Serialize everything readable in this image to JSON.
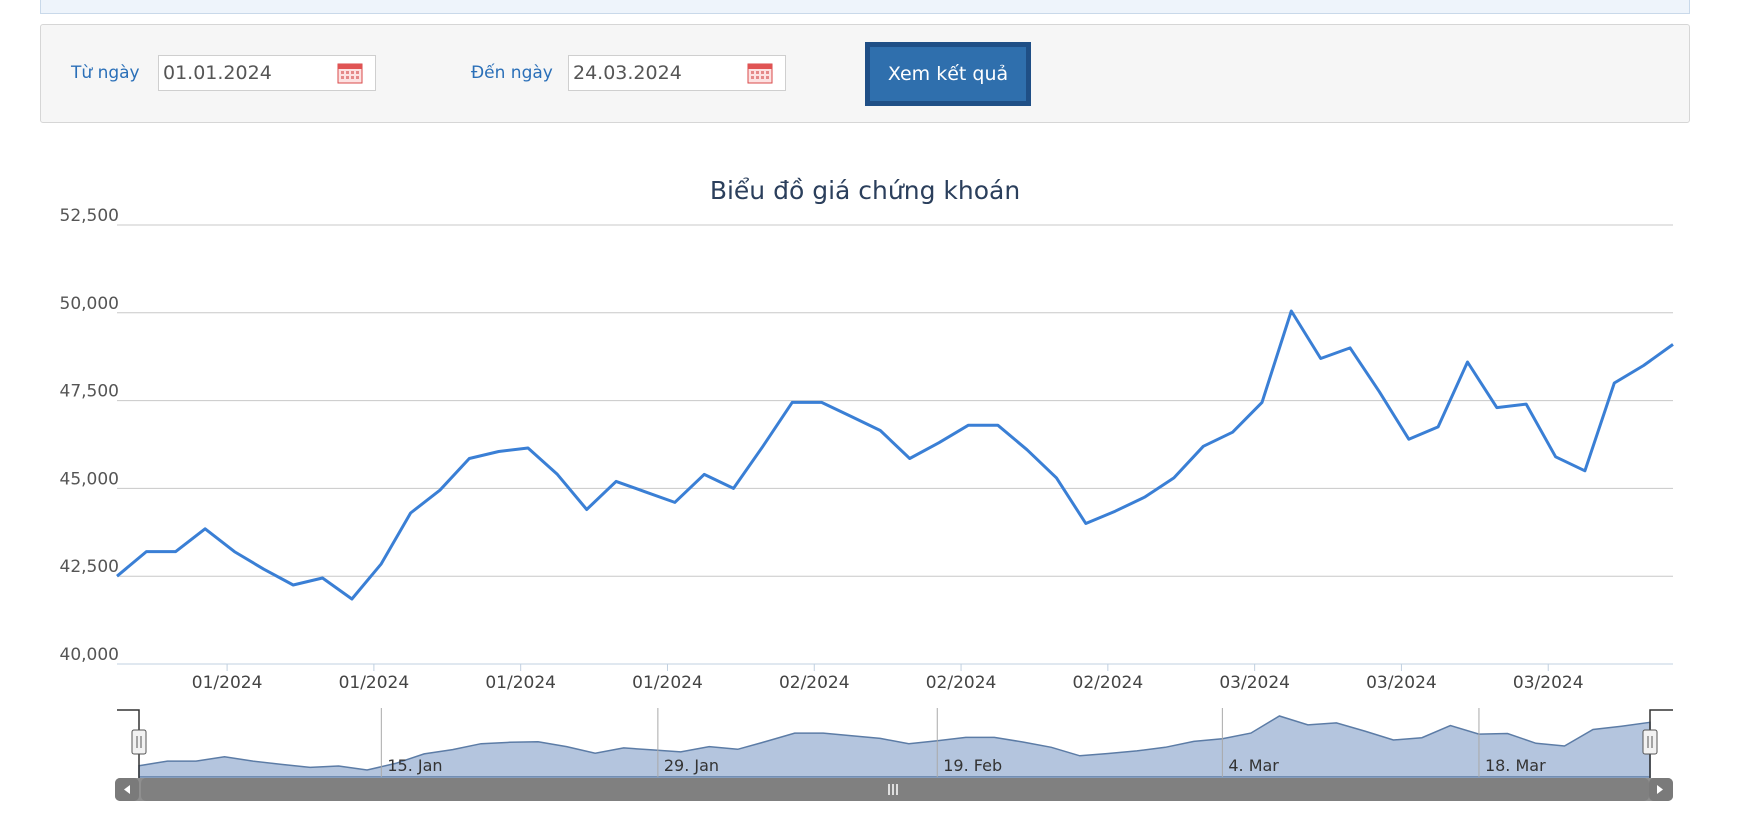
{
  "filter": {
    "from_label": "Từ ngày",
    "from_value": "01.01.2024",
    "to_label": "Đến ngày",
    "to_value": "24.03.2024",
    "submit_label": "Xem kết quả"
  },
  "colors": {
    "accent": "#2f6fad",
    "line": "#3a7fd5",
    "navigator_fill": "#b4c5de",
    "navigator_line": "#5c7ca6",
    "scrollbar": "#808080"
  },
  "chart_data": {
    "type": "line",
    "title": "Biểu đồ giá chứng khoán",
    "xlabel": "",
    "ylabel": "",
    "ylim": [
      40000,
      52500
    ],
    "yticks": [
      40000,
      42500,
      45000,
      47500,
      50000,
      52500
    ],
    "ytick_labels": [
      "40,000",
      "42,500",
      "45,000",
      "47,500",
      "50,000",
      "52,500"
    ],
    "grid": true,
    "series": [
      {
        "values": [
          42500,
          43200,
          43200,
          43850,
          43200,
          42700,
          42250,
          42450,
          41850,
          42850,
          44300,
          44950,
          45850,
          46050,
          46150,
          45400,
          44400,
          45200,
          44900,
          44600,
          45400,
          45000,
          46200,
          47450,
          47450,
          47050,
          46650,
          45850,
          46300,
          46800,
          46800,
          46100,
          45300,
          44000,
          44350,
          44750,
          45300,
          46200,
          46600,
          47450,
          50050,
          48700,
          49000,
          47750,
          46400,
          46750,
          48600,
          47300,
          47400,
          45900,
          45500,
          48000,
          48500,
          49100
        ]
      }
    ],
    "xtick_labels": [
      "01/2024",
      "01/2024",
      "01/2024",
      "01/2024",
      "02/2024",
      "02/2024",
      "02/2024",
      "03/2024",
      "03/2024",
      "03/2024"
    ],
    "xtick_index": [
      3.75,
      8.75,
      13.75,
      18.75,
      23.75,
      28.75,
      33.75,
      38.75,
      43.75,
      48.75
    ],
    "navigator": {
      "labels": [
        "15. Jan",
        "29. Jan",
        "19. Feb",
        "4. Mar",
        "18. Mar"
      ],
      "label_index": [
        8.5,
        18.2,
        28.0,
        38.0,
        47.0
      ]
    }
  }
}
